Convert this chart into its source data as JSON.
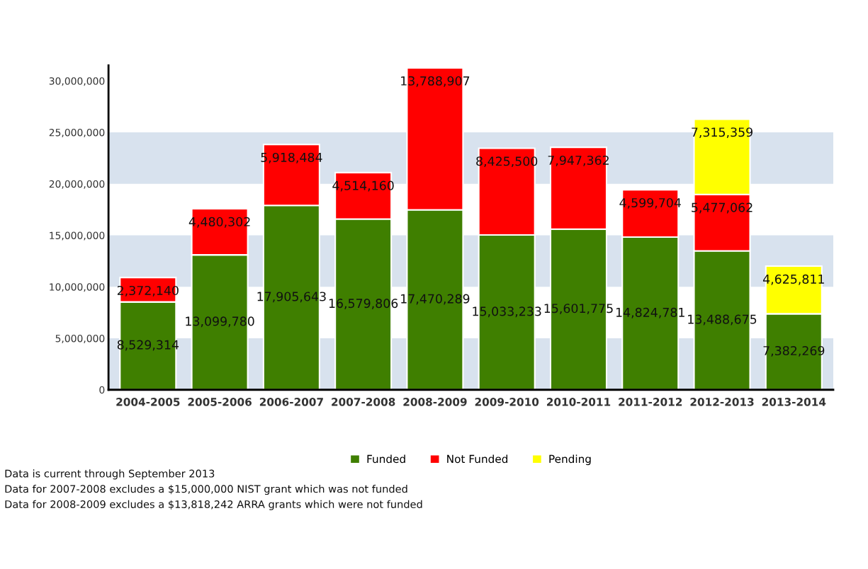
{
  "chart_data": {
    "type": "bar",
    "stacked": true,
    "categories": [
      "2004-2005",
      "2005-2006",
      "2006-2007",
      "2007-2008",
      "2008-2009",
      "2009-2010",
      "2010-2011",
      "2011-2012",
      "2012-2013",
      "2013-2014"
    ],
    "series": [
      {
        "name": "Funded",
        "color": "#3f7f00",
        "values": [
          8529314,
          13099780,
          17905643,
          16579806,
          17470289,
          15033233,
          15601775,
          14824781,
          13488675,
          7382269
        ],
        "value_labels": [
          "8,529,314",
          "13,099,780",
          "17,905,643",
          "16,579,806",
          "17,470,289",
          "15,033,233",
          "15,601,775",
          "14,824,781",
          "13,488,675",
          "7,382,269"
        ]
      },
      {
        "name": "Not Funded",
        "color": "#ff0000",
        "values": [
          2372140,
          4480302,
          5918484,
          4514160,
          13788907,
          8425500,
          7947362,
          4599704,
          5477062,
          null
        ],
        "value_labels": [
          "2,372,140",
          "4,480,302",
          "5,918,484",
          "4,514,160",
          "13,788,907",
          "8,425,500",
          "7,947,362",
          "4,599,704",
          "5,477,062",
          null
        ]
      },
      {
        "name": "Pending",
        "color": "#ffff00",
        "values": [
          null,
          null,
          null,
          null,
          null,
          null,
          null,
          null,
          7315359,
          4625811
        ],
        "value_labels": [
          null,
          null,
          null,
          null,
          null,
          null,
          null,
          null,
          "7,315,359",
          "4,625,811"
        ]
      }
    ],
    "ylim": [
      0,
      31500000
    ],
    "yticks": [
      {
        "value": 0,
        "label": "0"
      },
      {
        "value": 5000000,
        "label": "5,000,000"
      },
      {
        "value": 10000000,
        "label": "10,000,000"
      },
      {
        "value": 15000000,
        "label": "15,000,000"
      },
      {
        "value": 20000000,
        "label": "20,000,000"
      },
      {
        "value": 25000000,
        "label": "25,000,000"
      },
      {
        "value": 30000000,
        "label": "30,000,000"
      }
    ],
    "bands": [
      {
        "axis": "y",
        "from": 0,
        "to": 5000000,
        "color": "#d8e2ee"
      },
      {
        "axis": "y",
        "from": 10000000,
        "to": 15000000,
        "color": "#d8e2ee"
      },
      {
        "axis": "y",
        "from": 20000000,
        "to": 25000000,
        "color": "#d8e2ee"
      }
    ],
    "legend": "bottom",
    "annotations": [
      "Data is current through September 2013",
      "Data for 2007-2008 excludes a $15,000,000 NIST grant which was not funded",
      "Data for 2008-2009 excludes a $13,818,242 ARRA grants which were not funded"
    ]
  }
}
